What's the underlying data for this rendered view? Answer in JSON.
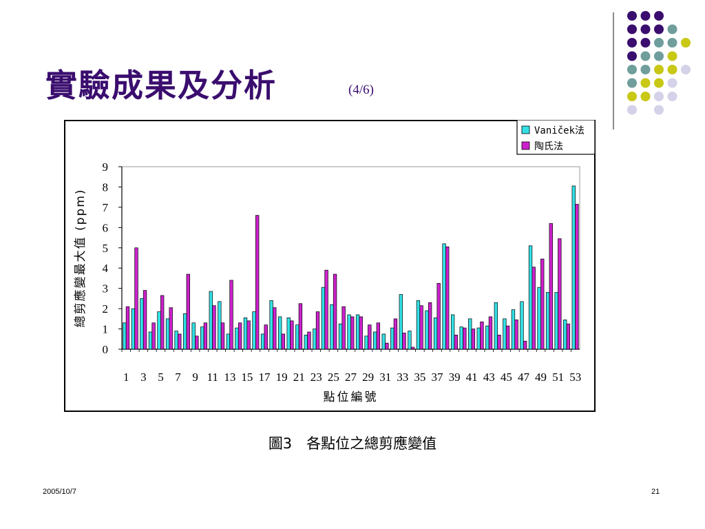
{
  "slide": {
    "title": "實驗成果及分析",
    "page_indicator": "(4/6)",
    "caption": "圖3　各點位之總剪應變值",
    "footer_date": "2005/10/7",
    "slide_number": "21"
  },
  "colors": {
    "title": "#3a0d6e",
    "series_1": "#33e0e6",
    "series_2": "#cc22cc",
    "dot_purple": "#3a0d6e",
    "dot_teal": "#6f9e9c",
    "dot_yellow": "#c8c815",
    "dot_lavender": "#d4d2e8"
  },
  "decoration": {
    "dot_rows": [
      [
        "purple",
        "purple",
        "purple"
      ],
      [
        "purple",
        "purple",
        "purple",
        "teal"
      ],
      [
        "purple",
        "purple",
        "teal",
        "teal",
        "yellow"
      ],
      [
        "purple",
        "teal",
        "teal",
        "yellow"
      ],
      [
        "teal",
        "teal",
        "yellow",
        "yellow",
        "lavender"
      ],
      [
        "teal",
        "yellow",
        "yellow",
        "lavender"
      ],
      [
        "yellow",
        "yellow",
        "lavender",
        "lavender"
      ],
      [
        "lavender",
        "",
        "lavender"
      ]
    ]
  },
  "chart_data": {
    "type": "bar",
    "xlabel": "點位編號",
    "ylabel": "總剪應變最大值 (ppm)",
    "ylim": [
      0,
      9
    ],
    "yticks": [
      0,
      1,
      2,
      3,
      4,
      5,
      6,
      7,
      8,
      9
    ],
    "grid": false,
    "legend_position": "top-right",
    "categories": [
      "1",
      "2",
      "3",
      "4",
      "5",
      "6",
      "7",
      "8",
      "9",
      "10",
      "11",
      "12",
      "13",
      "14",
      "15",
      "16",
      "17",
      "18",
      "19",
      "20",
      "21",
      "22",
      "23",
      "24",
      "25",
      "26",
      "27",
      "28",
      "29",
      "30",
      "31",
      "32",
      "33",
      "34",
      "35",
      "36",
      "37",
      "38",
      "39",
      "40",
      "41",
      "42",
      "43",
      "44",
      "45",
      "46",
      "47",
      "48",
      "49",
      "50",
      "51",
      "52",
      "53"
    ],
    "tick_labels": [
      "1",
      "",
      "3",
      "",
      "5",
      "",
      "7",
      "",
      "9",
      "",
      "11",
      "",
      "13",
      "",
      "15",
      "",
      "17",
      "",
      "19",
      "",
      "21",
      "",
      "23",
      "",
      "25",
      "",
      "27",
      "",
      "29",
      "",
      "31",
      "",
      "33",
      "",
      "35",
      "",
      "37",
      "",
      "39",
      "",
      "41",
      "",
      "43",
      "",
      "45",
      "",
      "47",
      "",
      "49",
      "",
      "51",
      "",
      "53"
    ],
    "series": [
      {
        "name": "Vaniček法",
        "values": [
          1.3,
          2.0,
          2.5,
          0.85,
          1.85,
          1.5,
          0.9,
          1.75,
          1.3,
          1.1,
          2.85,
          2.35,
          0.75,
          1.05,
          1.55,
          1.85,
          0.75,
          2.4,
          1.6,
          1.55,
          1.2,
          0.7,
          1.0,
          3.05,
          2.2,
          1.25,
          1.7,
          1.7,
          0.65,
          0.85,
          0.75,
          1.05,
          2.7,
          0.9,
          2.4,
          1.9,
          1.55,
          5.2,
          1.7,
          1.1,
          1.5,
          1.05,
          1.15,
          2.3,
          1.5,
          1.95,
          2.35,
          5.1,
          3.05,
          2.8,
          2.8,
          1.45,
          8.05
        ]
      },
      {
        "name": "陶氏法",
        "values": [
          2.1,
          5.0,
          2.9,
          1.3,
          2.65,
          2.05,
          0.75,
          3.7,
          0.65,
          1.3,
          2.15,
          1.3,
          3.4,
          1.3,
          1.4,
          6.6,
          1.2,
          2.05,
          0.75,
          1.4,
          2.25,
          0.85,
          1.85,
          3.9,
          3.7,
          2.1,
          1.6,
          1.6,
          1.2,
          1.3,
          0.3,
          1.5,
          0.8,
          0.1,
          2.15,
          2.3,
          3.25,
          5.05,
          0.7,
          1.05,
          1.0,
          1.35,
          1.6,
          0.7,
          1.15,
          1.45,
          0.4,
          4.05,
          4.45,
          6.2,
          5.45,
          1.25,
          7.15
        ]
      }
    ]
  }
}
